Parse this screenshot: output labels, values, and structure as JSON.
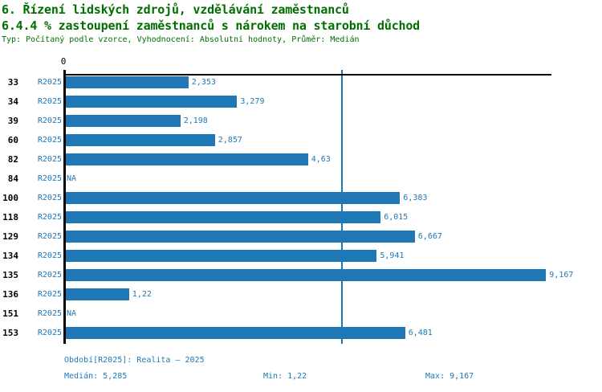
{
  "header": {
    "title_line1": "6. Řízení lidských zdrojů, vzdělávání zaměstnanců",
    "title_line2": "6.4.4 % zastoupení zaměstnanců s nárokem na starobní důchod",
    "meta_line": "Typ: Počítaný podle vzorce, Vyhodnocení: Absolutní hodnoty, Průměr: Medián"
  },
  "colors": {
    "title_green": "#006e00",
    "bar_blue": "#2077B5",
    "axis_black": "#000000"
  },
  "chart_data": {
    "type": "bar",
    "orientation": "horizontal",
    "origin_tick_label": "0",
    "na_label": "NA",
    "xlim": [
      0,
      9.27
    ],
    "median": 5.285,
    "min": 1.22,
    "max": 9.167,
    "grid": false,
    "categories": [
      "33",
      "34",
      "39",
      "60",
      "82",
      "84",
      "100",
      "118",
      "129",
      "134",
      "135",
      "136",
      "151",
      "153"
    ],
    "series": [
      {
        "name": "R2025",
        "values": [
          2.353,
          3.279,
          2.198,
          2.857,
          4.63,
          null,
          6.383,
          6.015,
          6.667,
          5.941,
          9.167,
          1.22,
          null,
          6.481
        ],
        "value_labels": [
          "2,353",
          "3,279",
          "2,198",
          "2,857",
          "4,63",
          "NA",
          "6,383",
          "6,015",
          "6,667",
          "5,941",
          "9,167",
          "1,22",
          "NA",
          "6,481"
        ]
      }
    ]
  },
  "footer": {
    "period_line": "Období[R2025]: Realita – 2025",
    "median_label": "Medián: 5,285",
    "min_label": "Min: 1,22",
    "max_label": "Max: 9,167"
  }
}
